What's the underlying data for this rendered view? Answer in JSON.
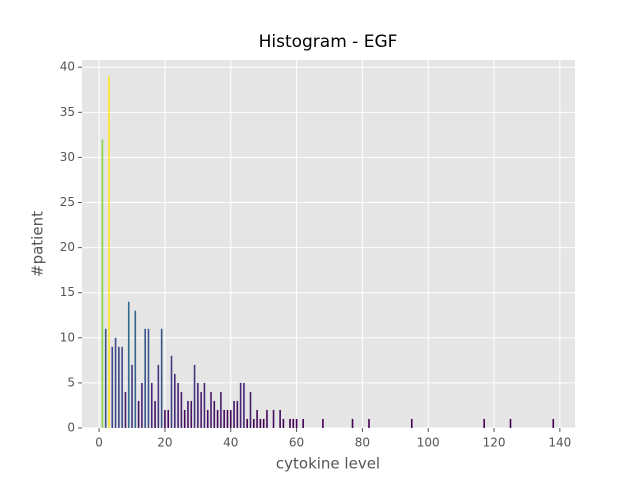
{
  "chart_data": {
    "type": "bar",
    "title": "Histogram - EGF",
    "xlabel": "cytokine level",
    "ylabel": "#patient",
    "x": [
      1,
      2,
      3,
      4,
      5,
      6,
      7,
      8,
      9,
      10,
      11,
      12,
      13,
      14,
      15,
      16,
      17,
      18,
      19,
      20,
      21,
      22,
      23,
      24,
      25,
      26,
      27,
      28,
      29,
      30,
      31,
      32,
      33,
      34,
      35,
      36,
      37,
      38,
      39,
      40,
      41,
      42,
      43,
      44,
      45,
      46,
      47,
      48,
      49,
      50,
      51,
      53,
      55,
      56,
      58,
      59,
      60,
      62,
      68,
      77,
      82,
      95,
      117,
      125,
      138
    ],
    "values": [
      32,
      11,
      39,
      9,
      10,
      9,
      9,
      4,
      14,
      7,
      13,
      3,
      5,
      11,
      11,
      5,
      3,
      7,
      11,
      2,
      2,
      8,
      6,
      5,
      4,
      2,
      3,
      3,
      7,
      5,
      4,
      5,
      2,
      4,
      3,
      2,
      4,
      2,
      2,
      2,
      3,
      3,
      5,
      5,
      1,
      4,
      1,
      2,
      1,
      1,
      2,
      2,
      2,
      1,
      1,
      1,
      1,
      1,
      1,
      1,
      1,
      1,
      1,
      1,
      1
    ],
    "colormap": "viridis",
    "xlim": [
      -5.2,
      144.6
    ],
    "ylim": [
      0,
      40.8
    ],
    "xticks": [
      0,
      20,
      40,
      60,
      80,
      100,
      120,
      140
    ],
    "yticks": [
      0,
      5,
      10,
      15,
      20,
      25,
      30,
      35,
      40
    ],
    "grid": true
  }
}
